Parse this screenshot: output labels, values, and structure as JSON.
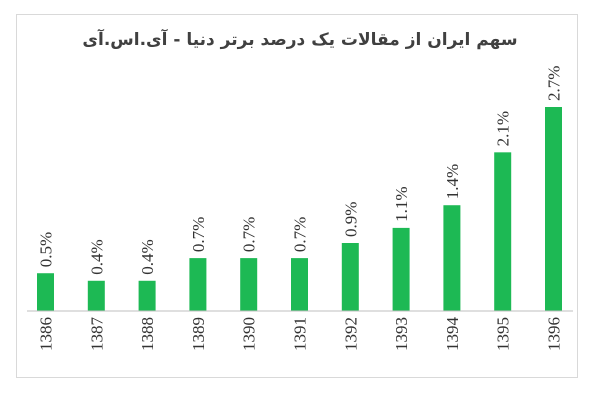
{
  "chart_data": {
    "type": "bar",
    "title": "سهم ایران از مقالات یک درصد برتر دنیا - آی.اس.آی",
    "categories": [
      "1386",
      "1387",
      "1388",
      "1389",
      "1390",
      "1391",
      "1392",
      "1393",
      "1394",
      "1395",
      "1396"
    ],
    "values": [
      0.5,
      0.4,
      0.4,
      0.7,
      0.7,
      0.7,
      0.9,
      1.1,
      1.4,
      2.1,
      2.7
    ],
    "data_labels": [
      "0.5%",
      "0.4%",
      "0.4%",
      "0.7%",
      "0.7%",
      "0.7%",
      "0.9%",
      "1.1%",
      "1.4%",
      "2.1%",
      "2.7%"
    ],
    "unit": "%",
    "ylim": [
      0,
      2.7
    ],
    "grid": false,
    "legend": "none",
    "bar_color": "#1db954",
    "axis_color": "#bfbfbf"
  }
}
